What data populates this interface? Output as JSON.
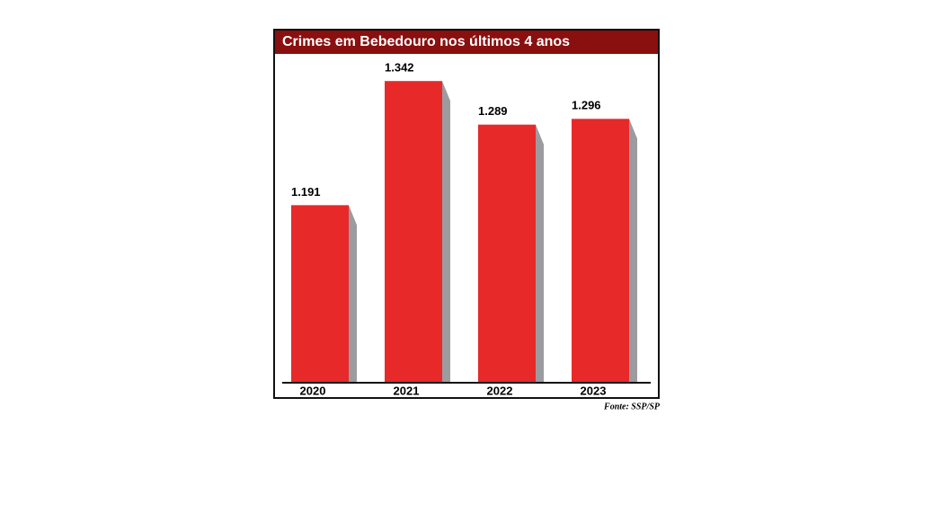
{
  "chart_data": {
    "type": "bar",
    "title": "Crimes em Bebedouro nos últimos 4 anos",
    "categories": [
      "2020",
      "2021",
      "2022",
      "2023"
    ],
    "values": [
      1191,
      1342,
      1289,
      1296
    ],
    "value_labels": [
      "1.191",
      "1.342",
      "1.289",
      "1.296"
    ],
    "color": "#e8292a",
    "ylim": [
      975,
      1375
    ],
    "source": "Fonte: SSP/SP"
  }
}
